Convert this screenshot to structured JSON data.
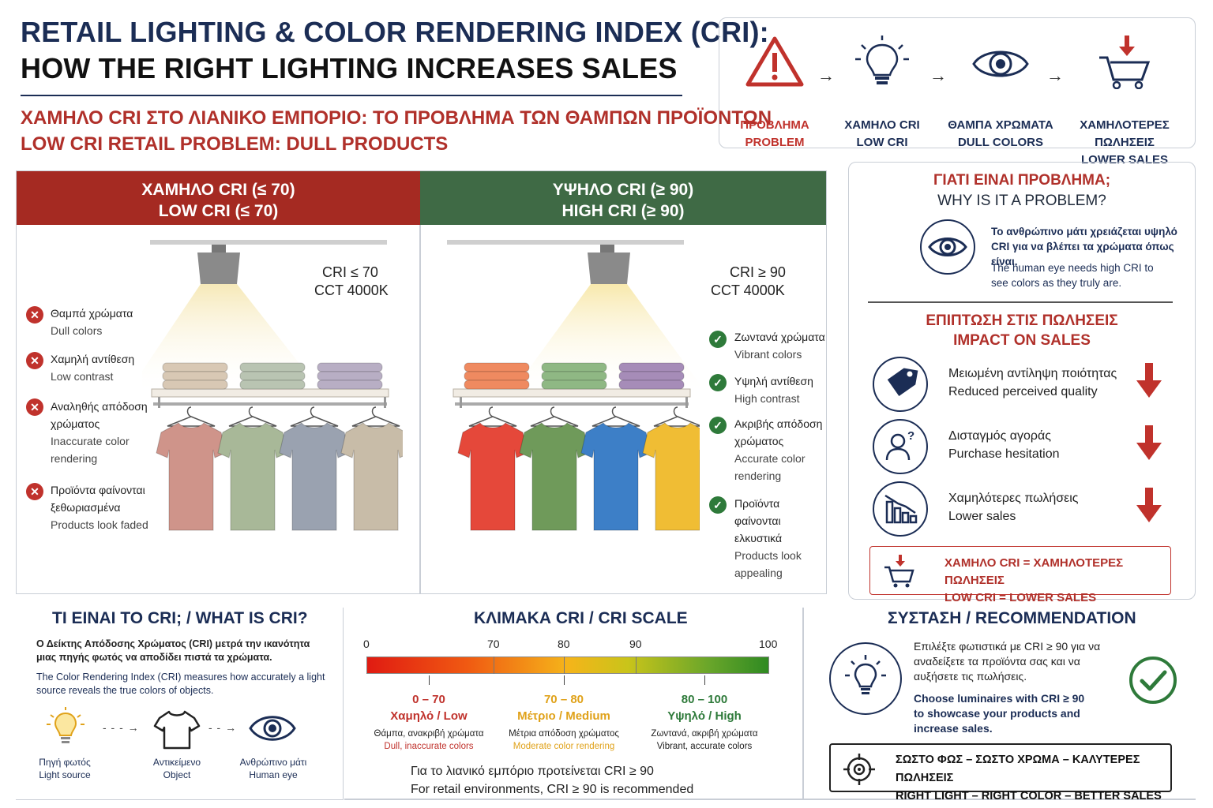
{
  "header": {
    "title_line1": "RETAIL LIGHTING & COLOR RENDERING INDEX (CRI):",
    "title_line2": "HOW THE RIGHT LIGHTING INCREASES SALES",
    "subtitle_gr": "ΧΑΜΗΛΟ CRI ΣΤΟ ΛΙΑΝΙΚΟ ΕΜΠΟΡΙΟ: ΤΟ ΠΡΟΒΛΗΜΑ ΤΩΝ ΘΑΜΠΩΝ ΠΡΟΪΟΝΤΩΝ",
    "subtitle_en": "LOW CRI RETAIL PROBLEM: DULL PRODUCTS"
  },
  "flow": [
    {
      "gr": "ΠΡΟΒΛΗΜΑ",
      "en": "PROBLEM",
      "icon": "warning-icon",
      "color": "#c0322c"
    },
    {
      "gr": "ΧΑΜΗΛΟ CRI",
      "en": "LOW CRI",
      "icon": "lightbulb-icon",
      "color": "#1b2d55"
    },
    {
      "gr": "ΘΑΜΠΑ ΧΡΩΜΑΤΑ",
      "en": "DULL COLORS",
      "icon": "eye-icon",
      "color": "#1b2d55"
    },
    {
      "gr": "ΧΑΜΗΛΟΤΕΡΕΣ ΠΩΛΗΣΕΙΣ",
      "en": "LOWER SALES",
      "icon": "cart-down-icon",
      "color": "#1b2d55"
    }
  ],
  "low": {
    "header_gr": "ΧΑΜΗΛΟ CRI (≤ 70)",
    "header_en": "LOW CRI (≤ 70)",
    "header_color": "#a52a22",
    "cri": "CRI ≤ 70",
    "cct": "CCT 4000K",
    "features": [
      {
        "gr": "Θαμπά χρώματα",
        "en": "Dull colors"
      },
      {
        "gr": "Χαμηλή αντίθεση",
        "en": "Low contrast"
      },
      {
        "gr": "Αναληθής απόδοση χρώματος",
        "en": "Inaccurate color rendering"
      },
      {
        "gr": "Προϊόντα φαίνονται ξεθωριασμένα",
        "en": "Products look faded"
      }
    ],
    "towel_colors": [
      "#d8c8b4",
      "#b9c4b2",
      "#b8aec4"
    ],
    "shirt_colors": [
      "#cf948a",
      "#a8b898",
      "#9aa2b0",
      "#c8bca8"
    ]
  },
  "high": {
    "header_gr": "ΥΨΗΛΟ CRI (≥ 90)",
    "header_en": "HIGH CRI (≥ 90)",
    "header_color": "#3f6a45",
    "cri": "CRI ≥ 90",
    "cct": "CCT 4000K",
    "features": [
      {
        "gr": "Ζωντανά χρώματα",
        "en": "Vibrant colors"
      },
      {
        "gr": "Υψηλή αντίθεση",
        "en": "High contrast"
      },
      {
        "gr": "Ακριβής απόδοση χρώματος",
        "en": "Accurate color rendering"
      },
      {
        "gr": "Προϊόντα φαίνονται ελκυστικά",
        "en": "Products look appealing"
      }
    ],
    "towel_colors": [
      "#ef8a60",
      "#8fb884",
      "#a68cb8"
    ],
    "shirt_colors": [
      "#e5483a",
      "#6f9a5a",
      "#3d7fc7",
      "#f0bd34"
    ]
  },
  "why": {
    "title_gr": "ΓΙΑΤΙ ΕΙΝΑΙ ΠΡΟΒΛΗΜΑ;",
    "title_en": "WHY IS IT A PROBLEM?",
    "text_gr": "Το ανθρώπινο μάτι χρειάζεται υψηλό CRI για να βλέπει τα χρώματα όπως είναι.",
    "text_en": "The human eye needs high CRI to see colors as they truly are.",
    "impact_gr": "ΕΠΙΠΤΩΣΗ ΣΤΙΣ ΠΩΛΗΣΕΙΣ",
    "impact_en": "IMPACT ON SALES",
    "impacts": [
      {
        "gr": "Μειωμένη αντίληψη ποιότητας",
        "en": "Reduced perceived quality",
        "icon": "price-tag-icon"
      },
      {
        "gr": "Δισταγμός αγοράς",
        "en": "Purchase hesitation",
        "icon": "person-question-icon"
      },
      {
        "gr": "Χαμηλότερες πωλήσεις",
        "en": "Lower sales",
        "icon": "declining-chart-icon"
      }
    ],
    "callout_gr": "ΧΑΜΗΛΟ CRI = ΧΑΜΗΛΟΤΕΡΕΣ ΠΩΛΗΣΕΙΣ",
    "callout_en": "LOW CRI = LOWER SALES"
  },
  "what": {
    "title": "ΤΙ ΕΙΝΑΙ ΤΟ CRI; / WHAT IS CRI?",
    "text_gr": "Ο Δείκτης Απόδοσης Χρώματος (CRI) μετρά την ικανότητα μιας πηγής φωτός να αποδίδει πιστά τα χρώματα.",
    "text_en": "The Color Rendering Index (CRI) measures how accurately a light source reveals the true colors of objects.",
    "steps": [
      {
        "gr": "Πηγή φωτός",
        "en": "Light source",
        "icon": "lightbulb-icon"
      },
      {
        "gr": "Αντικείμενο",
        "en": "Object",
        "icon": "tshirt-icon"
      },
      {
        "gr": "Ανθρώπινο μάτι",
        "en": "Human eye",
        "icon": "eye-icon"
      }
    ]
  },
  "scale": {
    "title": "ΚΛΙΜΑΚΑ CRI / CRI SCALE",
    "ticks": [
      "0",
      "70",
      "80",
      "90",
      "100"
    ],
    "ranges": [
      {
        "range": "0 – 70",
        "name": "Χαμηλό / Low",
        "gr": "Θάμπα, ανακριβή χρώματα",
        "en": "Dull, inaccurate colors",
        "color": "#c0322c"
      },
      {
        "range": "70 – 80",
        "name": "Μέτριο / Medium",
        "gr": "Μέτρια απόδοση χρώματος",
        "en": "Moderate color rendering",
        "color": "#e0a21a"
      },
      {
        "range": "80 – 100",
        "name": "Υψηλό / High",
        "gr": "Ζωντανά, ακριβή χρώματα",
        "en": "Vibrant, accurate colors",
        "color": "#2e7a3a"
      }
    ],
    "note_gr": "Για το λιανικό εμπόριο προτείνεται CRI ≥ 90",
    "note_en": "For retail environments, CRI ≥ 90 is recommended"
  },
  "recommendation": {
    "title": "ΣΥΣΤΑΣΗ / RECOMMENDATION",
    "text_gr": "Επιλέξτε φωτιστικά με CRI ≥ 90 για να αναδείξετε τα προϊόντα σας και να αυξήσετε τις πωλήσεις.",
    "text_en": "Choose luminaires with CRI ≥ 90 to showcase your products and increase sales.",
    "slogan_gr": "ΣΩΣΤΟ ΦΩΣ – ΣΩΣΤΟ ΧΡΩΜΑ – ΚΑΛΥΤΕΡΕΣ ΠΩΛΗΣΕΙΣ",
    "slogan_en": "RIGHT LIGHT – RIGHT COLOR – BETTER SALES"
  }
}
